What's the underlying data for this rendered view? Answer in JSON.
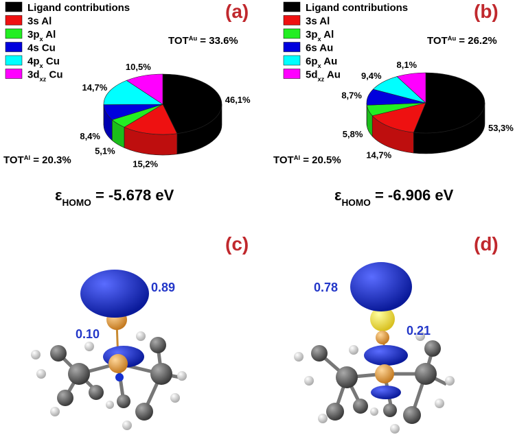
{
  "chart_data": [
    {
      "type": "pie",
      "panel": "(a)",
      "categories": [
        [
          "Ligand contributions"
        ],
        [
          "3s Al"
        ],
        [
          "3p",
          "x",
          " Al"
        ],
        [
          "4s Cu"
        ],
        [
          "4p",
          "x",
          " Cu"
        ],
        [
          "3d",
          "xz",
          " Cu"
        ]
      ],
      "values": [
        46.1,
        15.2,
        5.1,
        8.4,
        14.7,
        10.5
      ],
      "value_labels": [
        "46,1%",
        "15,2%",
        "5,1%",
        "8,4%",
        "14,7%",
        "10,5%"
      ],
      "colors": [
        "#000000",
        "#ee1111",
        "#22ee22",
        "#0000dd",
        "#00ffff",
        "#ff00ff"
      ],
      "annotations": {
        "tot_top": [
          "TOT",
          "Au",
          " = 33.6%"
        ],
        "tot_bottom": [
          "TOT",
          "Al",
          " = 20.3%"
        ],
        "homo": [
          "ε",
          "HOMO",
          " = -5.678 eV"
        ]
      }
    },
    {
      "type": "pie",
      "panel": "(b)",
      "categories": [
        [
          "Ligand contributions"
        ],
        [
          "3s Al"
        ],
        [
          "3p",
          "x",
          " Al"
        ],
        [
          "6s Au"
        ],
        [
          "6p",
          "x",
          " Au"
        ],
        [
          "5d",
          "xz",
          " Au"
        ]
      ],
      "values": [
        53.3,
        14.7,
        5.8,
        8.7,
        9.4,
        8.1
      ],
      "value_labels": [
        "53,3%",
        "14,7%",
        "5,8%",
        "8,7%",
        "9,4%",
        "8,1%"
      ],
      "colors": [
        "#000000",
        "#ee1111",
        "#22ee22",
        "#0000dd",
        "#00ffff",
        "#ff00ff"
      ],
      "annotations": {
        "tot_top": [
          "TOT",
          "Au",
          " = 26.2%"
        ],
        "tot_bottom": [
          "TOT",
          "Al",
          " = 20.5%"
        ],
        "homo": [
          "ε",
          "HOMO",
          " = -6.906 eV"
        ]
      }
    }
  ],
  "molecule_panels": [
    {
      "panel": "(c)",
      "labels": [
        "0.89",
        "0.10"
      ]
    },
    {
      "panel": "(d)",
      "labels": [
        "0.78",
        "0.21"
      ]
    }
  ]
}
